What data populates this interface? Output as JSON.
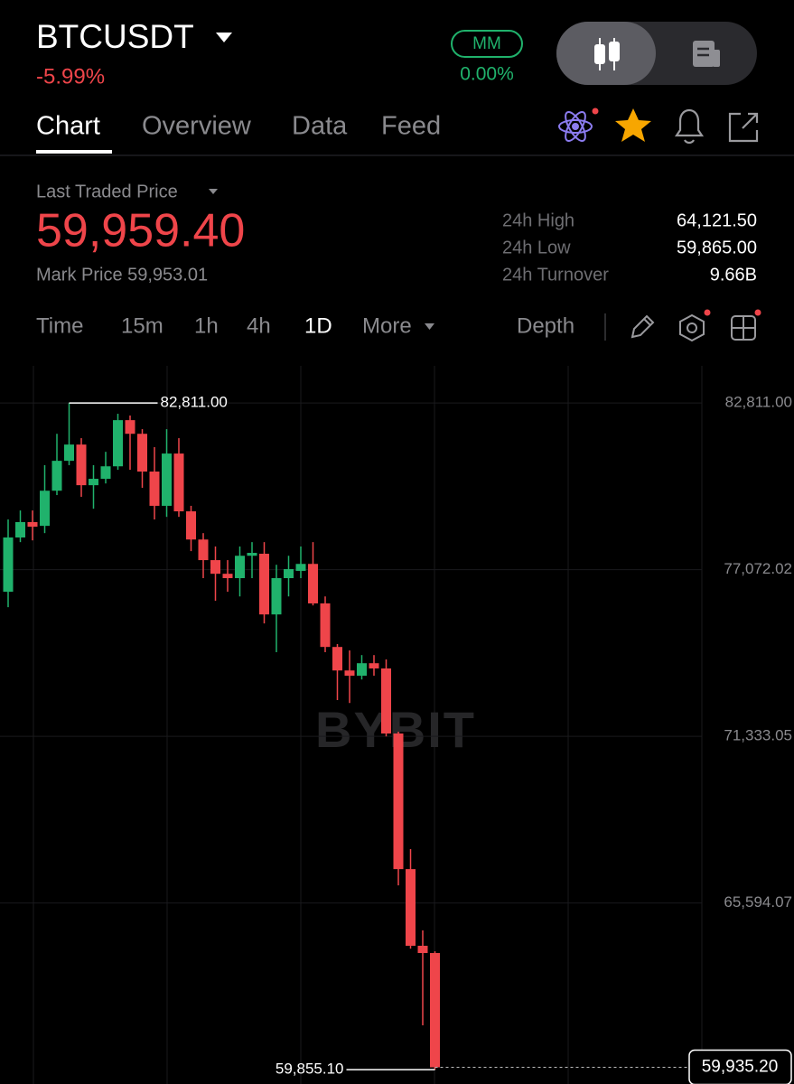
{
  "header": {
    "symbol": "BTCUSDT",
    "change": "-5.99%",
    "mm_badge": "MM",
    "mm_value": "0.00%"
  },
  "tabs": [
    "Chart",
    "Overview",
    "Data",
    "Feed"
  ],
  "price": {
    "label": "Last Traded Price",
    "last": "59,959.40",
    "mark": "Mark Price 59,953.01"
  },
  "stats": [
    {
      "label": "24h High",
      "value": "64,121.50"
    },
    {
      "label": "24h Low",
      "value": "59,865.00"
    },
    {
      "label": "24h Turnover",
      "value": "9.66B"
    }
  ],
  "intervals": [
    "Time",
    "15m",
    "1h",
    "4h",
    "1D",
    "More"
  ],
  "depth": "Depth",
  "chart_data": {
    "type": "candlestick",
    "watermark": "BYBIT",
    "up_color": "#20b26c",
    "down_color": "#ef454a",
    "grid": true,
    "ylim": [
      59360,
      84090
    ],
    "yticks": [
      {
        "value": 82811.0,
        "label": "82,811.00"
      },
      {
        "value": 77072.02,
        "label": "77,072.02"
      },
      {
        "value": 71333.05,
        "label": "71,333.05"
      },
      {
        "value": 65594.07,
        "label": "65,594.07"
      }
    ],
    "open": [
      76310,
      78180,
      78710,
      78580,
      79790,
      80820,
      81380,
      79980,
      80200,
      80630,
      82220,
      81750,
      80450,
      79270,
      81070,
      79080,
      78110,
      77400,
      76930,
      76780,
      77550,
      77620,
      75530,
      76780,
      77030,
      77270,
      75910,
      74410,
      73600,
      73420,
      73850,
      73670,
      71430,
      66760,
      64120,
      63870
    ],
    "high": [
      78800,
      79110,
      79110,
      80670,
      81750,
      82811,
      81600,
      80670,
      81130,
      82440,
      82380,
      81910,
      81290,
      81910,
      81600,
      79270,
      78330,
      77870,
      77400,
      77870,
      78020,
      78020,
      77240,
      77550,
      77870,
      78020,
      76150,
      74510,
      74290,
      74130,
      74130,
      73980,
      71490,
      67450,
      64650,
      63930
    ],
    "low": [
      75780,
      78020,
      78080,
      78330,
      79640,
      80670,
      79580,
      79170,
      80040,
      80510,
      80510,
      79890,
      78800,
      78890,
      78890,
      77710,
      76780,
      76000,
      76310,
      76150,
      76780,
      75220,
      74230,
      76150,
      76780,
      75840,
      74230,
      72580,
      72480,
      73290,
      73420,
      71330,
      66200,
      64020,
      61380,
      59855.1
    ],
    "close": [
      78180,
      78710,
      78550,
      79790,
      80820,
      81380,
      79980,
      80200,
      80630,
      82220,
      81750,
      80450,
      79270,
      81070,
      79080,
      78110,
      77400,
      76930,
      76780,
      77550,
      77650,
      75530,
      76780,
      77090,
      77270,
      75910,
      74410,
      73600,
      73420,
      73850,
      73670,
      71430,
      66760,
      64120,
      63870,
      59935.2
    ],
    "high_marker": {
      "value": 82811.0,
      "label": "82,811.00"
    },
    "low_marker": {
      "value": 59855.1,
      "label": "59,855.10"
    },
    "last_price": {
      "value": 59935.2,
      "label": "59,935.20"
    }
  }
}
